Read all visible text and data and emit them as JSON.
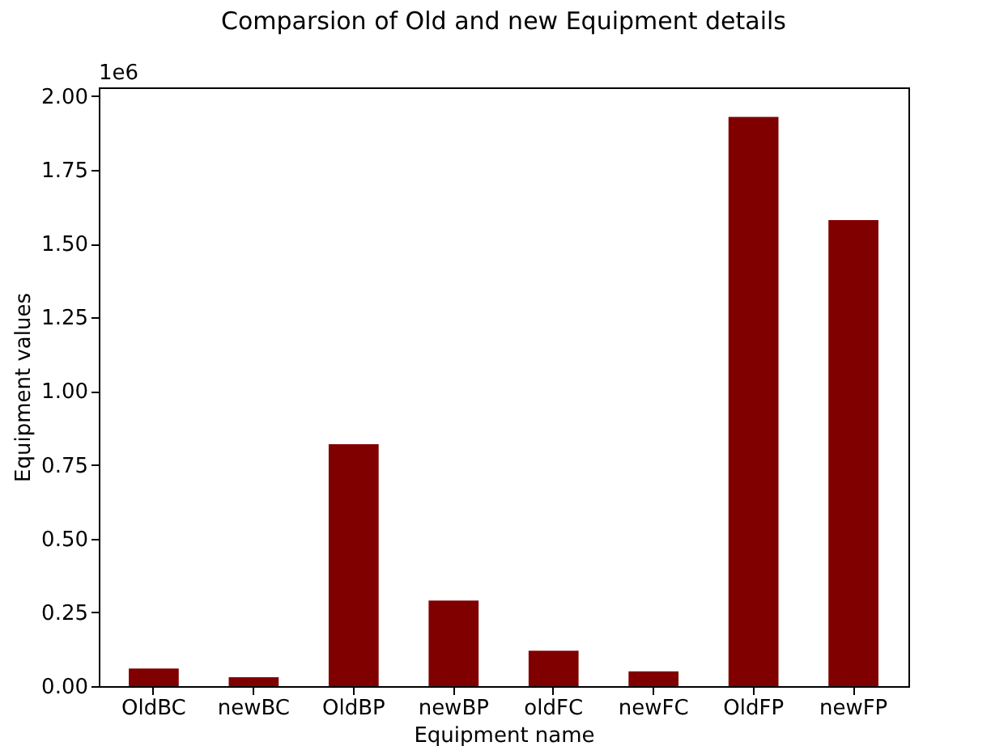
{
  "chart_data": {
    "type": "bar",
    "title": "Comparsion of Old and new Equipment details",
    "xlabel": "Equipment name",
    "ylabel": "Equipment values",
    "categories": [
      "OldBC",
      "newBC",
      "OldBP",
      "newBP",
      "oldFC",
      "newFC",
      "OldFP",
      "newFP"
    ],
    "values": [
      0.06,
      0.03,
      0.82,
      0.29,
      0.12,
      0.05,
      1.93,
      1.58
    ],
    "color": "#800000",
    "ylim": [
      0,
      2.03
    ],
    "yticks": [
      {
        "value": 0,
        "label": "0.00"
      },
      {
        "value": 0.25,
        "label": "0.25"
      },
      {
        "value": 0.5,
        "label": "0.50"
      },
      {
        "value": 0.75,
        "label": "0.75"
      },
      {
        "value": 1,
        "label": "1.00"
      },
      {
        "value": 1.25,
        "label": "1.25"
      },
      {
        "value": 1.5,
        "label": "1.50"
      },
      {
        "value": 1.75,
        "label": "1.75"
      },
      {
        "value": 2,
        "label": "2.00"
      }
    ],
    "annotations": [
      "1e6"
    ],
    "grid": false
  }
}
